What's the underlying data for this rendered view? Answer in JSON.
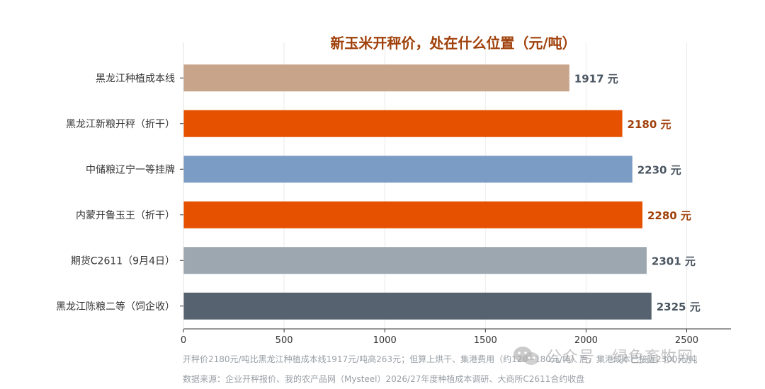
{
  "chart_data": {
    "type": "bar",
    "orientation": "horizontal",
    "title": "新玉米开秤价，处在什么位置（元/吨）",
    "categories": [
      "黑龙江种植成本线",
      "黑龙江新粮开秤（折干）",
      "中储粮辽宁一等挂牌",
      "内蒙开鲁玉王（折干）",
      "期货C2611（9月4日）",
      "黑龙江陈粮二等（饲企收）"
    ],
    "values": [
      1917,
      2180,
      2230,
      2280,
      2301,
      2325
    ],
    "value_labels": [
      "1917 元",
      "2180 元",
      "2230 元",
      "2280 元",
      "2301 元",
      "2325 元"
    ],
    "bar_colors": [
      "#c8a48a",
      "#e65100",
      "#7b9cc4",
      "#e65100",
      "#9ca7b0",
      "#566270"
    ],
    "label_colors": [
      "#4a5560",
      "#a0400a",
      "#4a5560",
      "#a0400a",
      "#4a5560",
      "#4a5560"
    ],
    "title_color": "#a0400a",
    "xlim": [
      0,
      2720
    ],
    "xticks": [
      0,
      500,
      1000,
      1500,
      2000,
      2500
    ],
    "grid": true,
    "xlabel": "",
    "ylabel": ""
  },
  "footnotes": {
    "line1": "开秤价2180元/吨比黑龙江种植成本线1917元/吨高263元；但算上烘干、集港费用（约120~180元/吨）后，集港成本已接近2300元/吨",
    "line2": "数据来源：企业开秤报价、我的农产品网（Mysteel）2026/27年度种植成本调研、大商所C2611合约收盘"
  },
  "watermark": {
    "text": "公众号 · 绿色畜牧网",
    "icon": "wechat-icon"
  }
}
